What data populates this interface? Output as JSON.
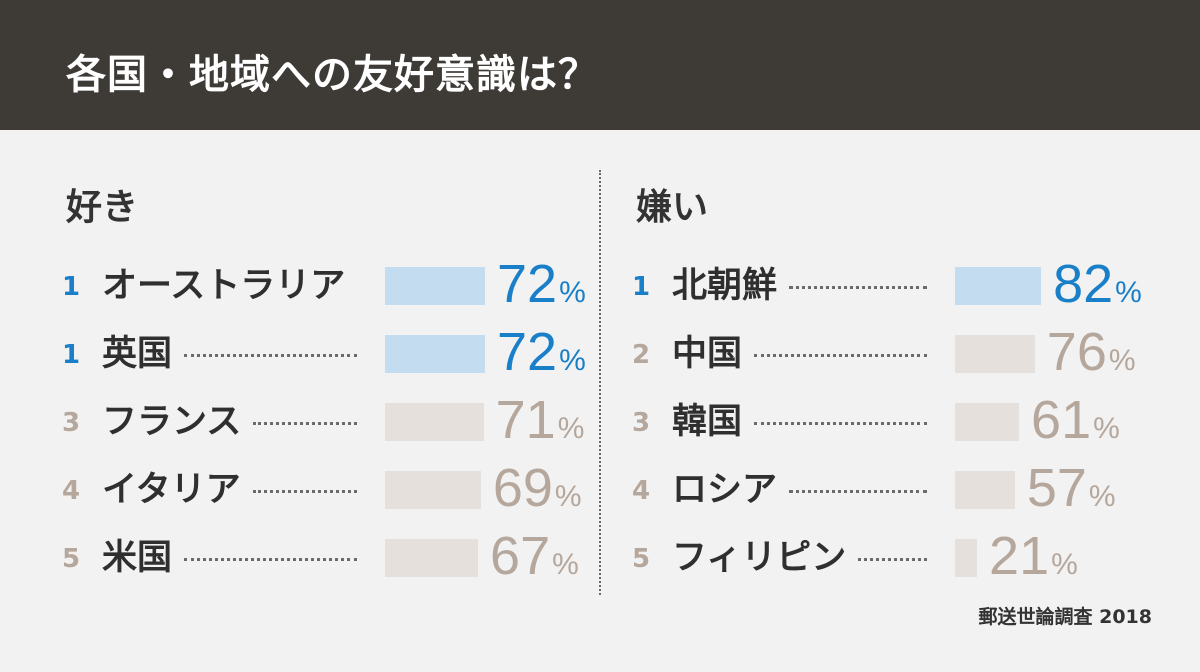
{
  "title": "各国・地域への友好意識は？",
  "source": "郵送世論調査 2018",
  "colors": {
    "header_bg": "#3e3a36",
    "page_bg": "#f2f2f2",
    "highlight_text": "#1a7fc9",
    "highlight_bar": "#c3dcef",
    "normal_text": "#b5a79c",
    "normal_bar": "#e6e0dd"
  },
  "chart_data": [
    {
      "type": "bar",
      "title": "好き",
      "categories": [
        "オーストラリア",
        "英国",
        "フランス",
        "イタリア",
        "米国"
      ],
      "ranks": [
        "1",
        "1",
        "3",
        "4",
        "5"
      ],
      "values": [
        72,
        72,
        71,
        69,
        67
      ],
      "unit": "%",
      "highlight": [
        true,
        true,
        false,
        false,
        false
      ]
    },
    {
      "type": "bar",
      "title": "嫌い",
      "categories": [
        "北朝鮮",
        "中国",
        "韓国",
        "ロシア",
        "フィリピン"
      ],
      "ranks": [
        "1",
        "2",
        "3",
        "4",
        "5"
      ],
      "values": [
        82,
        76,
        61,
        57,
        21
      ],
      "unit": "%",
      "highlight": [
        true,
        false,
        false,
        false,
        false
      ]
    }
  ]
}
